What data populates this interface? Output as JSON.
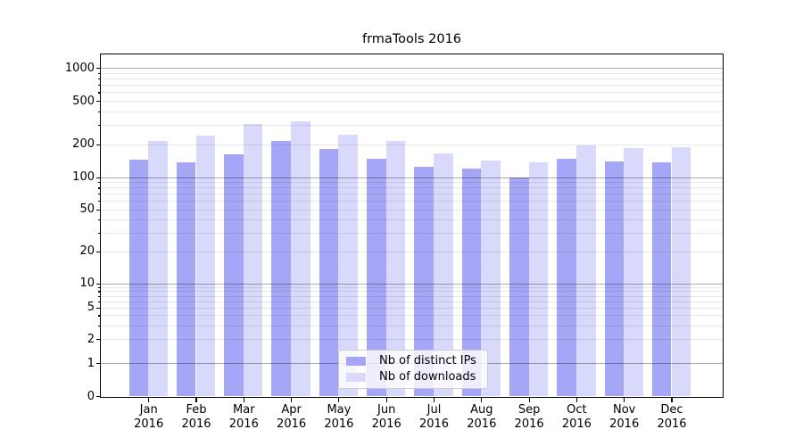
{
  "title": "frmaTools 2016",
  "chart_data": {
    "type": "bar",
    "title": "frmaTools 2016",
    "y_scale": "symlog",
    "grid": "both",
    "legend_position": "lower center",
    "categories": [
      "Jan",
      "Feb",
      "Mar",
      "Apr",
      "May",
      "Jun",
      "Jul",
      "Aug",
      "Sep",
      "Oct",
      "Nov",
      "Dec"
    ],
    "x_year_label": "2016",
    "series": [
      {
        "name": "Nb of distinct IPs",
        "color": "#a5a6f6",
        "values": [
          145,
          138,
          163,
          215,
          181,
          148,
          125,
          120,
          100,
          148,
          139,
          137
        ]
      },
      {
        "name": "Nb of downloads",
        "color": "#d8d9fb",
        "values": [
          215,
          243,
          310,
          325,
          244,
          216,
          166,
          142,
          137,
          195,
          185,
          188
        ]
      }
    ],
    "y_ticks": [
      0,
      1,
      2,
      5,
      10,
      20,
      50,
      100,
      200,
      500,
      1000
    ],
    "ylim": [
      0,
      1325
    ],
    "xlabel": "",
    "ylabel": ""
  },
  "colors": {
    "grid_major": "rgba(0,0,0,0.32)",
    "grid_minor": "rgba(0,0,0,0.09)",
    "axis": "#000000"
  }
}
